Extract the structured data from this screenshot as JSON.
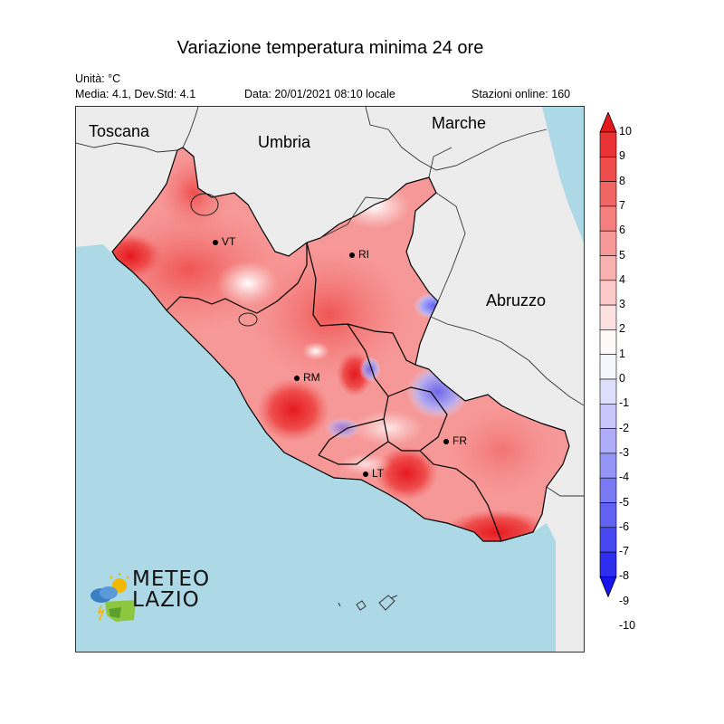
{
  "header": {
    "title": "Variazione temperatura minima 24 ore",
    "units": "Unità: °C",
    "stats": "Media: 4.1, Dev.Std: 4.1",
    "date": "Data: 20/01/2021 08:10 locale",
    "stations": "Stazioni online: 160"
  },
  "regions": {
    "toscana": "Toscana",
    "umbria": "Umbria",
    "marche": "Marche",
    "abruzzo": "Abruzzo"
  },
  "cities": {
    "vt": "VT",
    "ri": "RI",
    "rm": "RM",
    "fr": "FR",
    "lt": "LT"
  },
  "logo": {
    "line1": "METEO",
    "line2": "LAZIO"
  },
  "colorbar": {
    "ticks": [
      "10",
      "9",
      "8",
      "7",
      "6",
      "5",
      "4",
      "3",
      "2",
      "1",
      "0",
      "-1",
      "-2",
      "-3",
      "-4",
      "-5",
      "-6",
      "-7",
      "-8",
      "-9",
      "-10"
    ],
    "colors": [
      "#e5191e",
      "#ea3335",
      "#ee4d4c",
      "#f16665",
      "#f47f7e",
      "#f69897",
      "#f9b1b0",
      "#fbc9c8",
      "#fde1e1",
      "#fff8f8",
      "#f6f6ff",
      "#dedefd",
      "#c6c6fb",
      "#adadf9",
      "#9494f7",
      "#7a7af5",
      "#6161f3",
      "#4747f1",
      "#2e2eee",
      "#1515ec"
    ]
  },
  "colors": {
    "sea": "#add8e6",
    "land": "#ececec",
    "lazio_base": "#f5a3a3"
  }
}
